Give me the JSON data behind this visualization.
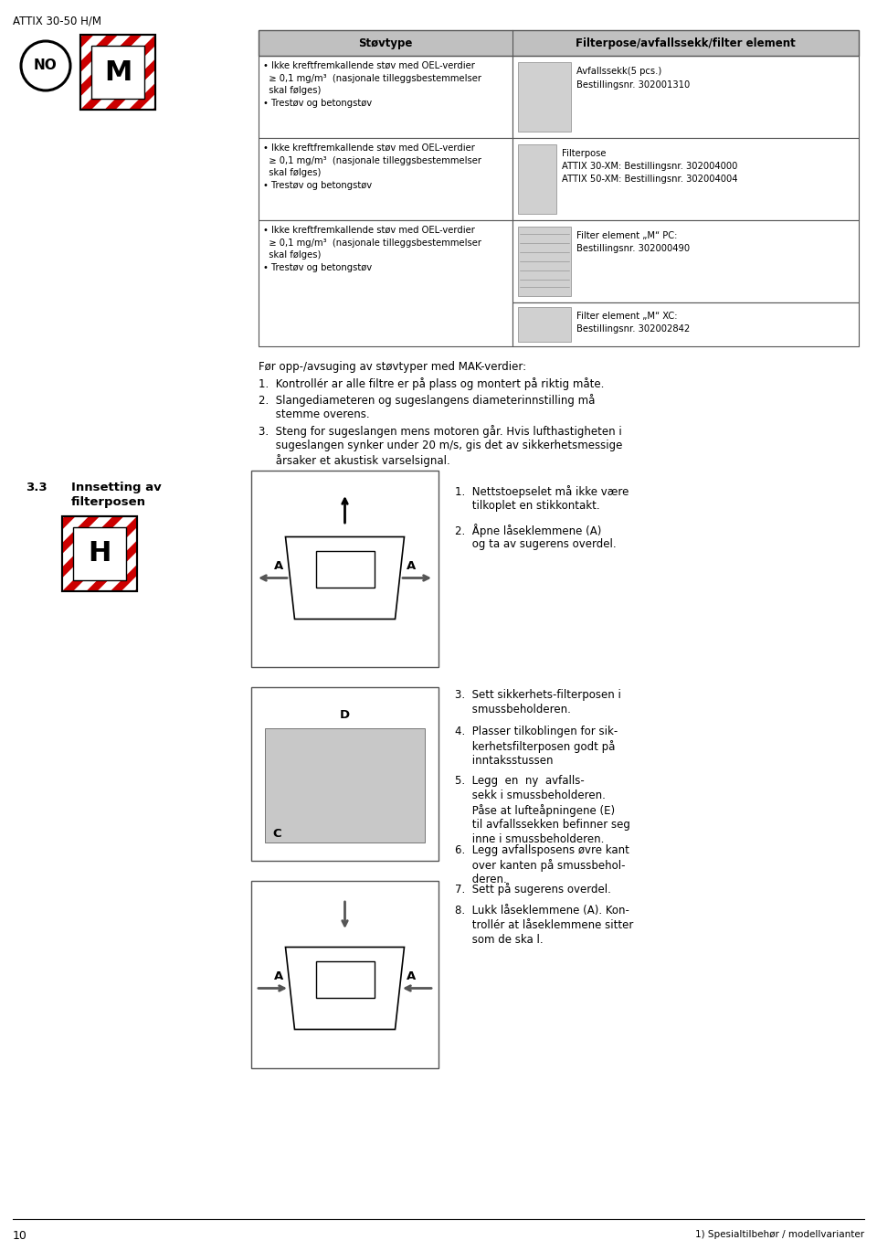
{
  "page_title": "ATTIX 30-50 H/M",
  "page_number": "10",
  "footer_text": "1) Spesialtilbehør / modellvarianter",
  "bg_color": "#ffffff",
  "table_col1_header": "Støvtype",
  "table_col2_header": "Filterpose/avfallssekk/filter element",
  "table_row1_text": "• Ikke kreftfremkallende støv med OEL-verdier\n  ≥ 0,1 mg/m³  (nasjonale tilleggsbestemmelser\n  skal følges)\n• Trestøv og betongstøv",
  "table_row1_col2_line1": "Avfallssekk(5 pcs.)",
  "table_row1_col2_line2": "Bestillingsnr. 302001310",
  "table_row2_col2_line1": "Filterpose",
  "table_row2_col2_line2": "ATTIX 30-XM: Bestillingsnr. 302004000",
  "table_row2_col2_line3": "ATTIX 50-XM: Bestillingsnr. 302004004",
  "table_row3_col2_line1": "Filter element „M“ PC:",
  "table_row3_col2_line2": "Bestillingsnr. 302000490",
  "table_row4_col2_line1": "Filter element „M“ XC:",
  "table_row4_col2_line2": "Bestillingsnr. 302002842",
  "pre_opp_text": "Før opp-/avsuging av støvtyper med MAK-verdier:",
  "step1": "1.  Kontrollér ar alle filtre er på plass og montert på riktig måte.",
  "step2_a": "2.  Slangediameteren og sugeslangens diameterinnstilling må",
  "step2_b": "     stemme overens.",
  "step3_a": "3.  Steng for sugeslangen mens motoren går. Hvis lufthastigheten i",
  "step3_b": "     sugeslangen synker under 20 m/s, gis det av sikkerhetsmessige",
  "step3_c": "     årsaker et akustisk varselsignal.",
  "section_num": "3.3",
  "section_title_a": "Innsetting av",
  "section_title_b": "filterposen",
  "right_steps_1a": "1.  Nettstoepselet må ikke være",
  "right_steps_1b": "     tilkoplet en stikkontakt.",
  "right_steps_2a": "2.  Åpne låseklemmene (A)",
  "right_steps_2b": "     og ta av sugerens overdel.",
  "step3_txt_a": "3.  Sett sikkerhets-filterposen i",
  "step3_txt_b": "     smussbeholderen.",
  "step4_txt_a": "4.  Plasser tilkoblingen for sik-",
  "step4_txt_b": "     kerhetsfilterposen godt på",
  "step4_txt_c": "     inntaksstussen",
  "step5_txt_a": "5.  Legg  en  ny  avfalls-",
  "step5_txt_b": "     sekk i smussbeholderen.",
  "step5_txt_c": "     Påse at lufteåpningene (E)",
  "step5_txt_d": "     til avfallssekken befinner seg",
  "step5_txt_e": "     inne i smussbeholderen.",
  "step6_txt_a": "6.  Legg avfallsposens øvre kant",
  "step6_txt_b": "     over kanten på smussbehol-",
  "step6_txt_c": "     deren.",
  "step7_txt": "7.  Sett på sugerens overdel.",
  "step8_txt_a": "8.  Lukk låseklemmene (A). Kon-",
  "step8_txt_b": "     trollér at låseklemmene sitter",
  "step8_txt_c": "     som de ska l.",
  "red_color": "#cc0000",
  "stripe_color": "#cc0000"
}
